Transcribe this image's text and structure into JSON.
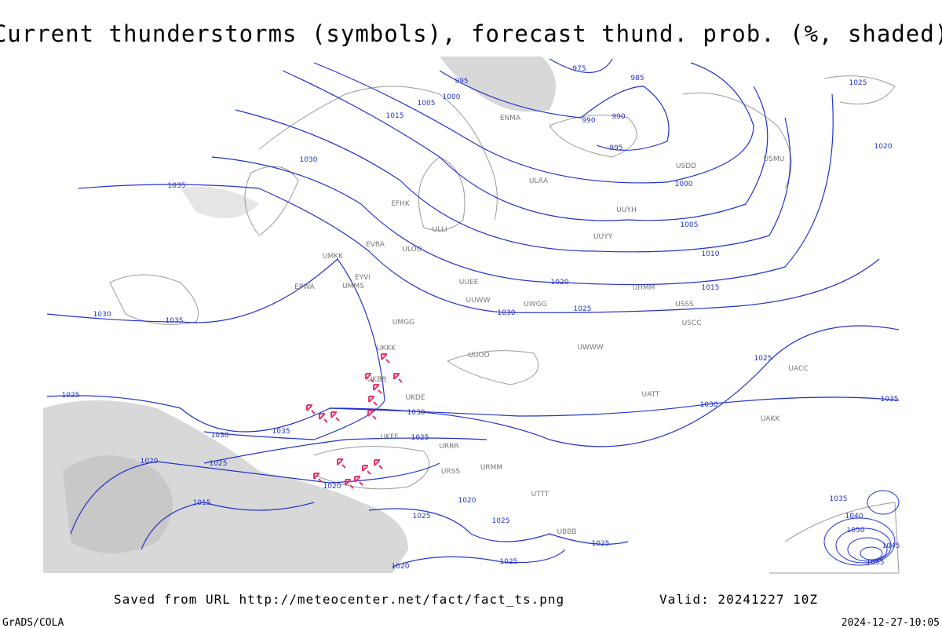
{
  "header": {
    "title": "Current thunderstorms (symbols), forecast thund. prob. (%, shaded)"
  },
  "map": {
    "isobar_labels": [
      "975",
      "995",
      "985",
      "1000",
      "1005",
      "990",
      "990",
      "1015",
      "995",
      "1030",
      "1000",
      "1035",
      "1025",
      "1020",
      "1005",
      "1010",
      "1020",
      "1015",
      "1025",
      "1030",
      "1030",
      "1035",
      "1025",
      "1030",
      "1035",
      "1025",
      "1030",
      "1035",
      "1030",
      "1025",
      "1020",
      "1025",
      "1020",
      "1015",
      "1020",
      "1025",
      "1025",
      "1025",
      "1025",
      "1020",
      "1035",
      "1040",
      "1050",
      "1055",
      "1045"
    ],
    "stations": [
      "ENMA",
      "ULAA",
      "UUYH",
      "USDD",
      "USMU",
      "ULLI",
      "ULOO",
      "EFHK",
      "EVRA",
      "UMKK",
      "EYVI",
      "UMMS",
      "EPWA",
      "UUEE",
      "UUWW",
      "UMGG",
      "UKKK",
      "UKBB",
      "UKDE",
      "UKFF",
      "URRR",
      "URMM",
      "UTTT",
      "UBBB",
      "UATT",
      "UACC",
      "UWWW",
      "UWGG",
      "URSS",
      "UUOO",
      "UAKK",
      "USCC",
      "USSS",
      "UUYY",
      "UHMM"
    ]
  },
  "footer": {
    "source": "Saved from URL http://meteocenter.net/fact/fact_ts.png",
    "valid": "Valid: 20241227 10Z",
    "software": "GrADS/COLA",
    "timestamp": "2024-12-27-10:05"
  }
}
